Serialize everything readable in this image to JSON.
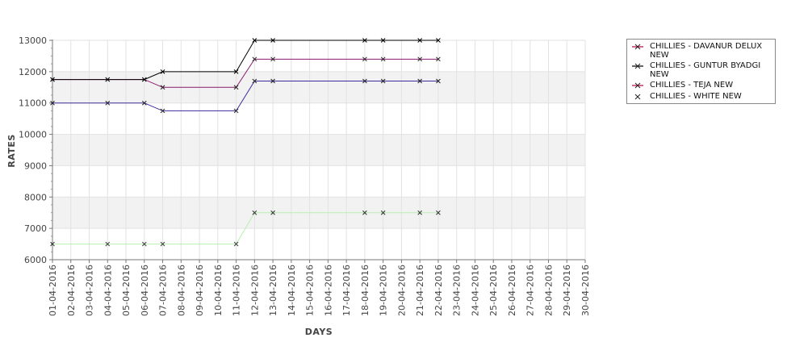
{
  "chart_data": {
    "type": "line",
    "xlabel": "DAYS",
    "ylabel": "RATES",
    "ylim": [
      6000,
      13000
    ],
    "y_ticks": [
      6000,
      7000,
      8000,
      9000,
      10000,
      11000,
      12000,
      13000
    ],
    "categories": [
      "01-04-2016",
      "02-04-2016",
      "03-04-2016",
      "04-04-2016",
      "05-04-2016",
      "06-04-2016",
      "07-04-2016",
      "08-04-2016",
      "09-04-2016",
      "10-04-2016",
      "11-04-2016",
      "12-04-2016",
      "13-04-2016",
      "14-04-2016",
      "15-04-2016",
      "16-04-2016",
      "17-04-2016",
      "18-04-2016",
      "19-04-2016",
      "20-04-2016",
      "21-04-2016",
      "22-04-2016",
      "23-04-2016",
      "24-04-2016",
      "25-04-2016",
      "26-04-2016",
      "27-04-2016",
      "28-04-2016",
      "29-04-2016",
      "30-04-2016"
    ],
    "grid": true,
    "legend_position": "right",
    "series": [
      {
        "name": "CHILLIES - DAVANUR DELUX NEW",
        "color": "#c0003c",
        "line_color": "#8b1a6b",
        "points": [
          [
            "01-04-2016",
            11750
          ],
          [
            "04-04-2016",
            11750
          ],
          [
            "06-04-2016",
            11750
          ],
          [
            "07-04-2016",
            11500
          ],
          [
            "11-04-2016",
            11500
          ],
          [
            "12-04-2016",
            12400
          ],
          [
            "13-04-2016",
            12400
          ],
          [
            "18-04-2016",
            12400
          ],
          [
            "19-04-2016",
            12400
          ],
          [
            "21-04-2016",
            12400
          ],
          [
            "22-04-2016",
            12400
          ]
        ]
      },
      {
        "name": "CHILLIES - GUNTUR BYADGI NEW",
        "color": "#000000",
        "line_color": "#000000",
        "points": [
          [
            "01-04-2016",
            11750
          ],
          [
            "04-04-2016",
            11750
          ],
          [
            "06-04-2016",
            11750
          ],
          [
            "07-04-2016",
            12000
          ],
          [
            "11-04-2016",
            12000
          ],
          [
            "12-04-2016",
            13000
          ],
          [
            "13-04-2016",
            13000
          ],
          [
            "18-04-2016",
            13000
          ],
          [
            "19-04-2016",
            13000
          ],
          [
            "21-04-2016",
            13000
          ],
          [
            "22-04-2016",
            13000
          ]
        ]
      },
      {
        "name": "CHILLIES - TEJA NEW",
        "color": "#c0003c",
        "line_color": "#3f2a9a",
        "points": [
          [
            "01-04-2016",
            11000
          ],
          [
            "04-04-2016",
            11000
          ],
          [
            "06-04-2016",
            11000
          ],
          [
            "07-04-2016",
            10750
          ],
          [
            "11-04-2016",
            10750
          ],
          [
            "12-04-2016",
            11700
          ],
          [
            "13-04-2016",
            11700
          ],
          [
            "18-04-2016",
            11700
          ],
          [
            "19-04-2016",
            11700
          ],
          [
            "21-04-2016",
            11700
          ],
          [
            "22-04-2016",
            11700
          ]
        ]
      },
      {
        "name": "CHILLIES - WHITE NEW",
        "color": "#333333",
        "line_color": "#b8f0b0",
        "points": [
          [
            "01-04-2016",
            6500
          ],
          [
            "04-04-2016",
            6500
          ],
          [
            "06-04-2016",
            6500
          ],
          [
            "07-04-2016",
            6500
          ],
          [
            "11-04-2016",
            6500
          ],
          [
            "12-04-2016",
            7500
          ],
          [
            "13-04-2016",
            7500
          ],
          [
            "18-04-2016",
            7500
          ],
          [
            "19-04-2016",
            7500
          ],
          [
            "21-04-2016",
            7500
          ],
          [
            "22-04-2016",
            7500
          ]
        ]
      }
    ]
  }
}
